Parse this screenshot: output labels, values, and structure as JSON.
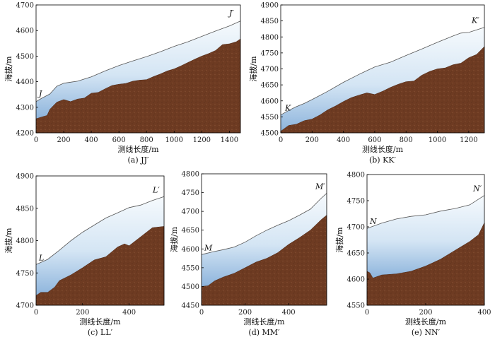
{
  "chart_data": [
    {
      "type": "area",
      "caption": "(a)  JJ′",
      "xlabel": "测线长度/m",
      "ylabel": "海拔/m",
      "xlim": [
        0,
        1480
      ],
      "ylim": [
        4200,
        4700
      ],
      "xticks": [
        0,
        200,
        400,
        600,
        800,
        1000,
        1200,
        1400
      ],
      "yticks": [
        4200,
        4300,
        4400,
        4500,
        4600,
        4700
      ],
      "start_label": "J",
      "end_label": "J′",
      "series": [
        {
          "role": "ice-surface",
          "x": [
            0,
            40,
            100,
            150,
            200,
            250,
            300,
            400,
            500,
            600,
            700,
            800,
            900,
            1000,
            1100,
            1200,
            1300,
            1400,
            1480
          ],
          "values": [
            4322,
            4335,
            4352,
            4382,
            4394,
            4398,
            4402,
            4419,
            4442,
            4463,
            4481,
            4498,
            4517,
            4538,
            4556,
            4577,
            4598,
            4618,
            4637
          ]
        },
        {
          "role": "bed",
          "x": [
            0,
            40,
            80,
            100,
            150,
            200,
            250,
            300,
            350,
            400,
            450,
            500,
            550,
            600,
            650,
            700,
            750,
            800,
            850,
            900,
            950,
            1000,
            1050,
            1100,
            1150,
            1200,
            1250,
            1300,
            1350,
            1400,
            1450,
            1480
          ],
          "values": [
            4255,
            4262,
            4268,
            4292,
            4320,
            4330,
            4322,
            4332,
            4336,
            4355,
            4358,
            4372,
            4385,
            4390,
            4393,
            4402,
            4406,
            4408,
            4420,
            4430,
            4442,
            4450,
            4462,
            4475,
            4488,
            4500,
            4510,
            4522,
            4545,
            4548,
            4556,
            4567
          ]
        }
      ]
    },
    {
      "type": "area",
      "caption": "(b)  KK′",
      "xlabel": "测线长度/m",
      "ylabel": "海拔/m",
      "xlim": [
        0,
        1300
      ],
      "ylim": [
        4500,
        4900
      ],
      "xticks": [
        0,
        200,
        400,
        600,
        800,
        1000,
        1200
      ],
      "yticks": [
        4500,
        4550,
        4600,
        4650,
        4700,
        4750,
        4800,
        4850,
        4900
      ],
      "start_label": "K",
      "end_label": "K′",
      "series": [
        {
          "role": "ice-surface",
          "x": [
            0,
            50,
            100,
            150,
            200,
            300,
            400,
            500,
            600,
            700,
            800,
            900,
            1000,
            1100,
            1150,
            1200,
            1300
          ],
          "values": [
            4556,
            4570,
            4582,
            4592,
            4604,
            4630,
            4658,
            4683,
            4706,
            4721,
            4742,
            4762,
            4783,
            4803,
            4812,
            4814,
            4830
          ]
        },
        {
          "role": "bed",
          "x": [
            0,
            50,
            100,
            150,
            200,
            250,
            300,
            350,
            400,
            450,
            500,
            550,
            600,
            650,
            700,
            750,
            800,
            850,
            900,
            950,
            1000,
            1050,
            1100,
            1150,
            1200,
            1250,
            1300
          ],
          "values": [
            4505,
            4523,
            4527,
            4538,
            4543,
            4556,
            4572,
            4584,
            4598,
            4610,
            4618,
            4625,
            4620,
            4630,
            4642,
            4652,
            4660,
            4662,
            4680,
            4692,
            4700,
            4703,
            4713,
            4718,
            4735,
            4745,
            4770
          ]
        }
      ]
    },
    {
      "type": "area",
      "caption": "(c) LL′",
      "xlabel": "测线长度/m",
      "ylabel": "海拔/m",
      "xlim": [
        0,
        550
      ],
      "ylim": [
        4700,
        4900
      ],
      "xticks": [
        0,
        200,
        400
      ],
      "yticks": [
        4700,
        4750,
        4800,
        4850,
        4900
      ],
      "start_label": "L",
      "end_label": "L′",
      "series": [
        {
          "role": "ice-surface",
          "x": [
            0,
            50,
            100,
            150,
            200,
            250,
            300,
            350,
            400,
            450,
            500,
            550
          ],
          "values": [
            4763,
            4771,
            4785,
            4800,
            4813,
            4824,
            4835,
            4843,
            4851,
            4855,
            4862,
            4868
          ]
        },
        {
          "role": "bed",
          "x": [
            0,
            20,
            50,
            80,
            100,
            150,
            200,
            250,
            300,
            350,
            380,
            400,
            450,
            500,
            550
          ],
          "values": [
            4715,
            4720,
            4720,
            4728,
            4738,
            4747,
            4758,
            4770,
            4775,
            4790,
            4795,
            4792,
            4806,
            4820,
            4822
          ]
        }
      ]
    },
    {
      "type": "area",
      "caption": "(d) MM′",
      "xlabel": "测线长度/m",
      "ylabel": "海拔/m",
      "xlim": [
        0,
        575
      ],
      "ylim": [
        4450,
        4800
      ],
      "xticks": [
        0,
        200,
        400
      ],
      "yticks": [
        4450,
        4500,
        4550,
        4600,
        4650,
        4700,
        4750,
        4800
      ],
      "start_label": "M",
      "end_label": "M′",
      "series": [
        {
          "role": "ice-surface",
          "x": [
            0,
            50,
            100,
            150,
            200,
            250,
            300,
            350,
            400,
            450,
            500,
            550,
            575
          ],
          "values": [
            4585,
            4592,
            4598,
            4605,
            4618,
            4635,
            4650,
            4663,
            4675,
            4690,
            4706,
            4735,
            4748
          ]
        },
        {
          "role": "bed",
          "x": [
            0,
            30,
            60,
            100,
            150,
            200,
            250,
            300,
            350,
            400,
            450,
            500,
            550,
            575
          ],
          "values": [
            4500,
            4502,
            4515,
            4525,
            4535,
            4550,
            4565,
            4575,
            4590,
            4612,
            4630,
            4650,
            4678,
            4690
          ]
        }
      ]
    },
    {
      "type": "area",
      "caption": "(e) NN′",
      "xlabel": "测线长度/m",
      "ylabel": "海拔/m",
      "xlim": [
        0,
        400
      ],
      "ylim": [
        4550,
        4800
      ],
      "xticks": [
        0,
        200,
        400
      ],
      "yticks": [
        4550,
        4600,
        4650,
        4700,
        4750,
        4800
      ],
      "start_label": "N",
      "end_label": "N′",
      "series": [
        {
          "role": "ice-surface",
          "x": [
            0,
            50,
            100,
            150,
            200,
            250,
            300,
            350,
            400
          ],
          "values": [
            4697,
            4707,
            4715,
            4720,
            4723,
            4730,
            4735,
            4742,
            4760
          ]
        },
        {
          "role": "bed",
          "x": [
            0,
            10,
            20,
            50,
            100,
            150,
            200,
            250,
            300,
            350,
            380,
            400
          ],
          "values": [
            4615,
            4612,
            4602,
            4608,
            4610,
            4615,
            4625,
            4638,
            4655,
            4672,
            4685,
            4708
          ]
        }
      ]
    }
  ]
}
